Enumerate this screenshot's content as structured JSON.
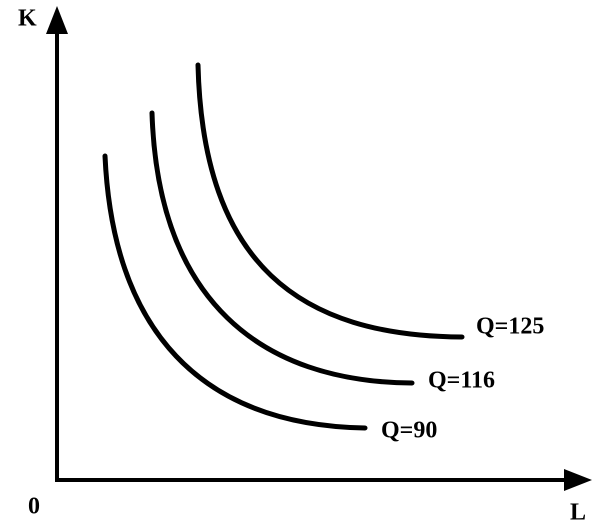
{
  "axes": {
    "y_label": "K",
    "x_label": "L",
    "origin": "0"
  },
  "curves": [
    {
      "label": "Q=125"
    },
    {
      "label": "Q=116"
    },
    {
      "label": "Q=90"
    }
  ]
}
